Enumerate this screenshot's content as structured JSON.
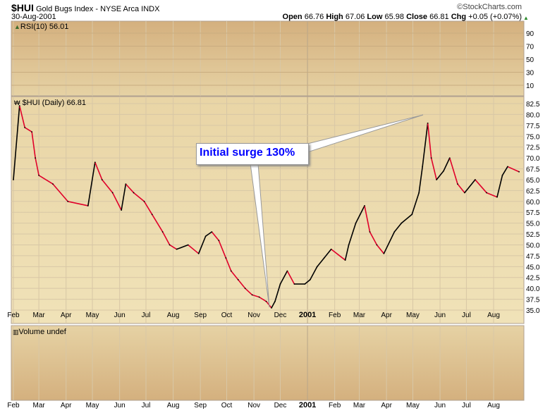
{
  "header": {
    "symbol": "$HUI",
    "name": "Gold Bugs Index - NYSE Arca",
    "exchange": "INDX",
    "brand": "©StockCharts.com",
    "date": "30-Aug-2001",
    "open_label": "Open",
    "open": "66.76",
    "high_label": "High",
    "high": "67.06",
    "low_label": "Low",
    "low": "65.98",
    "close_label": "Close",
    "close": "66.81",
    "chg_label": "Chg",
    "chg": "+0.05 (+0.07%)"
  },
  "rsi_panel": {
    "label": "RSI(10) 56.01",
    "ticks": [
      "90",
      "70",
      "50",
      "30",
      "10"
    ]
  },
  "volume_panel": {
    "label": "Volume undef"
  },
  "annotation": {
    "text": "Initial surge 130%",
    "color": "#0000ff"
  },
  "colors": {
    "up": "#000000",
    "down": "#e0002a",
    "panel_top": "#d4b07e",
    "panel_bottom": "#ecdcb0"
  },
  "chart_data": {
    "type": "line",
    "title": "$HUI (Daily) 66.81",
    "ylim": [
      35,
      82.5
    ],
    "yticks": [
      "82.5",
      "80.0",
      "77.5",
      "75.0",
      "72.5",
      "70.0",
      "67.5",
      "65.0",
      "62.5",
      "60.0",
      "57.5",
      "55.0",
      "52.5",
      "50.0",
      "47.5",
      "45.0",
      "42.5",
      "40.0",
      "37.5",
      "35.0"
    ],
    "xticks": [
      "Feb",
      "Mar",
      "Apr",
      "May",
      "Jun",
      "Jul",
      "Aug",
      "Sep",
      "Oct",
      "Nov",
      "Dec",
      "2001",
      "Feb",
      "Mar",
      "Apr",
      "May",
      "Jun",
      "Jul",
      "Aug"
    ],
    "grid": true,
    "points": [
      [
        "2000-02-01",
        65
      ],
      [
        "2000-02-08",
        82
      ],
      [
        "2000-02-14",
        77
      ],
      [
        "2000-02-22",
        76
      ],
      [
        "2000-02-26",
        70
      ],
      [
        "2000-03-01",
        66
      ],
      [
        "2000-03-17",
        64
      ],
      [
        "2000-04-03",
        60
      ],
      [
        "2000-04-26",
        59
      ],
      [
        "2000-05-04",
        69
      ],
      [
        "2000-05-12",
        65
      ],
      [
        "2000-05-24",
        62
      ],
      [
        "2000-06-03",
        58
      ],
      [
        "2000-06-08",
        64
      ],
      [
        "2000-06-17",
        62
      ],
      [
        "2000-06-29",
        60
      ],
      [
        "2000-07-08",
        57
      ],
      [
        "2000-07-20",
        53
      ],
      [
        "2000-07-28",
        50
      ],
      [
        "2000-08-05",
        49
      ],
      [
        "2000-08-18",
        50
      ],
      [
        "2000-08-30",
        48
      ],
      [
        "2000-09-07",
        52
      ],
      [
        "2000-09-14",
        53
      ],
      [
        "2000-09-22",
        51
      ],
      [
        "2000-09-30",
        47
      ],
      [
        "2000-10-06",
        44
      ],
      [
        "2000-10-14",
        42
      ],
      [
        "2000-10-22",
        40
      ],
      [
        "2000-10-30",
        38.5
      ],
      [
        "2000-11-07",
        38
      ],
      [
        "2000-11-15",
        37
      ],
      [
        "2000-11-21",
        35.5
      ],
      [
        "2000-11-25",
        37
      ],
      [
        "2000-12-01",
        41
      ],
      [
        "2000-12-09",
        44
      ],
      [
        "2000-12-17",
        41
      ],
      [
        "2000-12-29",
        41
      ],
      [
        "2001-01-04",
        42
      ],
      [
        "2001-01-12",
        45
      ],
      [
        "2001-01-20",
        47
      ],
      [
        "2001-01-28",
        49
      ],
      [
        "2001-02-13",
        46.5
      ],
      [
        "2001-02-17",
        50
      ],
      [
        "2001-02-25",
        55
      ],
      [
        "2001-03-07",
        59
      ],
      [
        "2001-03-13",
        53
      ],
      [
        "2001-03-21",
        50
      ],
      [
        "2001-03-29",
        48
      ],
      [
        "2001-04-10",
        53
      ],
      [
        "2001-04-18",
        55
      ],
      [
        "2001-04-30",
        57
      ],
      [
        "2001-05-08",
        62
      ],
      [
        "2001-05-12",
        68
      ],
      [
        "2001-05-18",
        78
      ],
      [
        "2001-05-22",
        70
      ],
      [
        "2001-05-28",
        65
      ],
      [
        "2001-06-05",
        67
      ],
      [
        "2001-06-12",
        70
      ],
      [
        "2001-06-21",
        64
      ],
      [
        "2001-06-29",
        62
      ],
      [
        "2001-07-11",
        65
      ],
      [
        "2001-07-24",
        62
      ],
      [
        "2001-08-05",
        61
      ],
      [
        "2001-08-11",
        66
      ],
      [
        "2001-08-17",
        68
      ],
      [
        "2001-08-30",
        66.81
      ]
    ]
  }
}
